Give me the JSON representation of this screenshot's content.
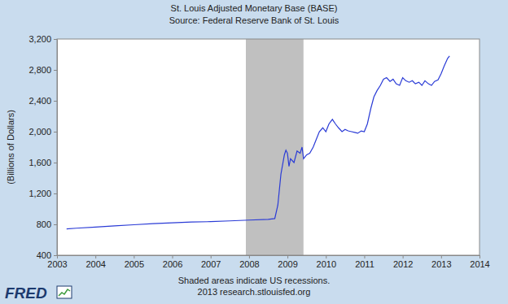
{
  "chart_data": {
    "type": "line",
    "title": "St. Louis Adjusted Monetary Base (BASE)",
    "subtitle": "Source: Federal Reserve Bank of St. Louis",
    "y_label": "(Billions of Dollars)",
    "notes": [
      "Shaded areas indicate US recessions.",
      "2013 research.stlouisfed.org"
    ],
    "logo": "FRED",
    "x": [
      2003.25,
      2003.5,
      2004.0,
      2004.5,
      2005.0,
      2005.5,
      2006.0,
      2006.5,
      2007.0,
      2007.5,
      2008.0,
      2008.5,
      2008.67,
      2008.75,
      2008.83,
      2008.92,
      2008.96,
      2009.0,
      2009.04,
      2009.08,
      2009.17,
      2009.25,
      2009.33,
      2009.38,
      2009.42,
      2009.5,
      2009.58,
      2009.67,
      2009.75,
      2009.83,
      2009.92,
      2010.0,
      2010.08,
      2010.17,
      2010.25,
      2010.33,
      2010.42,
      2010.5,
      2010.58,
      2010.67,
      2010.75,
      2010.83,
      2010.92,
      2011.0,
      2011.08,
      2011.17,
      2011.25,
      2011.33,
      2011.42,
      2011.5,
      2011.58,
      2011.67,
      2011.75,
      2011.83,
      2011.92,
      2012.0,
      2012.08,
      2012.17,
      2012.25,
      2012.33,
      2012.42,
      2012.5,
      2012.58,
      2012.67,
      2012.75,
      2012.83,
      2012.92,
      2013.0,
      2013.08,
      2013.17,
      2013.22
    ],
    "series": [
      {
        "name": "BASE",
        "color": "#2a3bd6",
        "values": [
          740,
          750,
          765,
          780,
          795,
          810,
          820,
          830,
          835,
          845,
          855,
          865,
          875,
          1050,
          1450,
          1700,
          1760,
          1720,
          1550,
          1650,
          1600,
          1750,
          1720,
          1800,
          1650,
          1700,
          1720,
          1800,
          1900,
          2000,
          2050,
          2000,
          2100,
          2160,
          2100,
          2050,
          2000,
          2030,
          2010,
          2000,
          1990,
          1980,
          2010,
          2000,
          2100,
          2300,
          2450,
          2530,
          2600,
          2680,
          2700,
          2650,
          2680,
          2620,
          2600,
          2700,
          2660,
          2640,
          2660,
          2620,
          2640,
          2600,
          2660,
          2620,
          2600,
          2650,
          2670,
          2750,
          2850,
          2950,
          2980
        ]
      }
    ],
    "recessions": [
      {
        "start": 2007.917,
        "end": 2009.417
      }
    ],
    "xlim": [
      2003,
      2014
    ],
    "xticks": [
      2003,
      2004,
      2005,
      2006,
      2007,
      2008,
      2009,
      2010,
      2011,
      2012,
      2013,
      2014
    ],
    "ylim": [
      400,
      3200
    ],
    "yticks": [
      400,
      800,
      {
        "value": 1200,
        "label": "1,200"
      },
      {
        "value": 1600,
        "label": "1,600"
      },
      {
        "value": 2000,
        "label": "2,000"
      },
      {
        "value": 2400,
        "label": "2,400"
      },
      {
        "value": 2800,
        "label": "2,800"
      },
      {
        "value": 3200,
        "label": "3,200"
      }
    ],
    "grid": false
  }
}
